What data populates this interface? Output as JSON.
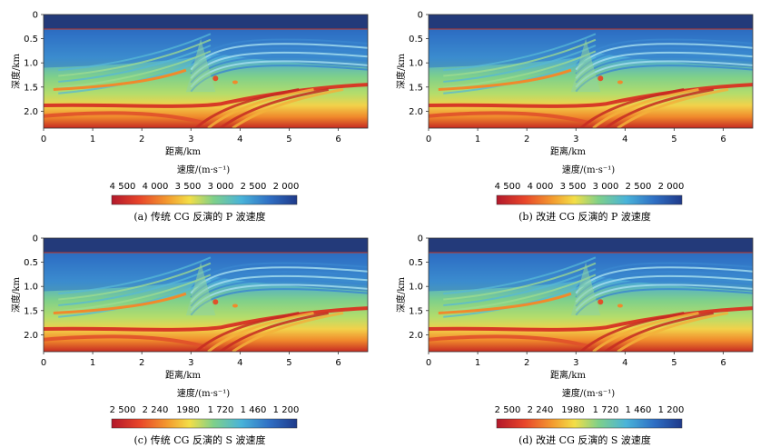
{
  "panels": [
    {
      "chart_data": {
        "type": "heatmap",
        "caption": "(a) 传统 CG 反演的 P 波速度",
        "xlabel": "距离/km",
        "ylabel": "深度/km",
        "x_ticks": [
          "0",
          "1",
          "2",
          "3",
          "4",
          "5",
          "6"
        ],
        "y_ticks": [
          "0",
          "0.5",
          "1.0",
          "1.5",
          "2.0"
        ],
        "xlim": [
          0,
          6.6
        ],
        "ylim": [
          0,
          2.35
        ],
        "colorbar_title": "速度/(m·s⁻¹)",
        "colorbar_ticks": [
          "4 500",
          "4 000",
          "3 500",
          "3 000",
          "2 500",
          "2 000"
        ],
        "colorbar_range": [
          4500,
          2000
        ],
        "water_layer_depth_km": 0.3,
        "colors": {
          "high": "#b2182b",
          "mid": "#7fd08a",
          "low": "#1f3a8a",
          "water": "#233a7a"
        }
      }
    },
    {
      "chart_data": {
        "type": "heatmap",
        "caption": "(b) 改进 CG 反演的 P 波速度",
        "xlabel": "距离/km",
        "ylabel": "深度/km",
        "x_ticks": [
          "0",
          "1",
          "2",
          "3",
          "4",
          "5",
          "6"
        ],
        "y_ticks": [
          "0",
          "0.5",
          "1.0",
          "1.5",
          "2.0"
        ],
        "xlim": [
          0,
          6.6
        ],
        "ylim": [
          0,
          2.35
        ],
        "colorbar_title": "速度/(m·s⁻¹)",
        "colorbar_ticks": [
          "4 500",
          "4 000",
          "3 500",
          "3 000",
          "2 500",
          "2 000"
        ],
        "colorbar_range": [
          4500,
          2000
        ],
        "water_layer_depth_km": 0.3,
        "colors": {
          "high": "#b2182b",
          "mid": "#7fd08a",
          "low": "#1f3a8a",
          "water": "#233a7a"
        }
      }
    },
    {
      "chart_data": {
        "type": "heatmap",
        "caption": "(c) 传统 CG 反演的 S 波速度",
        "xlabel": "距离/km",
        "ylabel": "深度/km",
        "x_ticks": [
          "0",
          "1",
          "2",
          "3",
          "4",
          "5",
          "6"
        ],
        "y_ticks": [
          "0",
          "0.5",
          "1.0",
          "1.5",
          "2.0"
        ],
        "xlim": [
          0,
          6.6
        ],
        "ylim": [
          0,
          2.35
        ],
        "colorbar_title": "速度/(m·s⁻¹)",
        "colorbar_ticks": [
          "2 500",
          "2 240",
          "1980",
          "1 720",
          "1 460",
          "1 200"
        ],
        "colorbar_range": [
          2500,
          1200
        ],
        "water_layer_depth_km": 0.3,
        "colors": {
          "high": "#b2182b",
          "mid": "#7fd08a",
          "low": "#1f3a8a",
          "water": "#233a7a"
        }
      }
    },
    {
      "chart_data": {
        "type": "heatmap",
        "caption": "(d) 改进 CG 反演的 S 波速度",
        "xlabel": "距离/km",
        "ylabel": "深度/km",
        "x_ticks": [
          "0",
          "1",
          "2",
          "3",
          "4",
          "5",
          "6"
        ],
        "y_ticks": [
          "0",
          "0.5",
          "1.0",
          "1.5",
          "2.0"
        ],
        "xlim": [
          0,
          6.6
        ],
        "ylim": [
          0,
          2.35
        ],
        "colorbar_title": "速度/(m·s⁻¹)",
        "colorbar_ticks": [
          "2 500",
          "2 240",
          "1980",
          "1 720",
          "1 460",
          "1 200"
        ],
        "colorbar_range": [
          2500,
          1200
        ],
        "water_layer_depth_km": 0.3,
        "colors": {
          "high": "#b2182b",
          "mid": "#7fd08a",
          "low": "#1f3a8a",
          "water": "#233a7a"
        }
      }
    }
  ]
}
